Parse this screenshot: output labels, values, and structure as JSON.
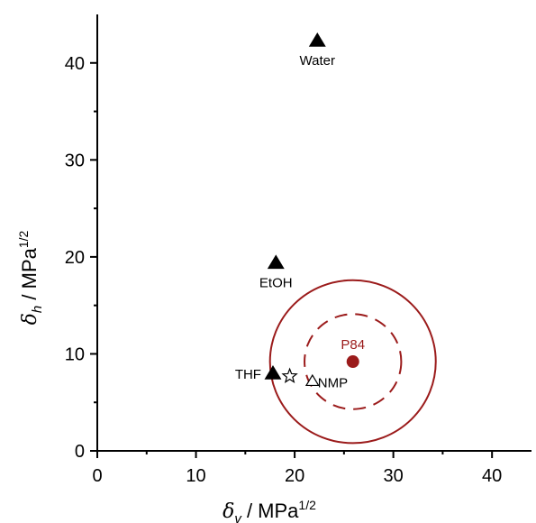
{
  "chart_data": {
    "type": "scatter",
    "xlim": [
      0,
      44
    ],
    "ylim": [
      0,
      45
    ],
    "x_ticks": [
      0,
      10,
      20,
      30,
      40
    ],
    "y_ticks": [
      0,
      10,
      20,
      30,
      40
    ],
    "x_tick_labels": [
      "0",
      "10",
      "20",
      "30",
      "40"
    ],
    "y_tick_labels": [
      "0",
      "10",
      "20",
      "30",
      "40"
    ],
    "xlabel": {
      "symbol": "δ",
      "sub": "v",
      "unit": " / MPa",
      "sup": "1/2"
    },
    "ylabel": {
      "symbol": "δ",
      "sub": "h",
      "unit": " / MPa",
      "sup": "1/2"
    },
    "grid": false,
    "points": [
      {
        "label": "Water",
        "x": 22.3,
        "y": 42.3,
        "marker": "filled-triangle",
        "label_pos": "below"
      },
      {
        "label": "EtOH",
        "x": 18.1,
        "y": 19.4,
        "marker": "filled-triangle",
        "label_pos": "below"
      },
      {
        "label": "THF",
        "x": 17.8,
        "y": 8.0,
        "marker": "filled-triangle",
        "label_pos": "left"
      },
      {
        "label": "",
        "x": 19.5,
        "y": 7.7,
        "marker": "open-star",
        "label_pos": "none"
      },
      {
        "label": "NMP",
        "x": 21.8,
        "y": 7.2,
        "marker": "open-triangle",
        "label_pos": "right"
      },
      {
        "label": "P84",
        "x": 25.9,
        "y": 9.2,
        "marker": "filled-circle",
        "label_pos": "above"
      }
    ],
    "circles": [
      {
        "center_x": 25.9,
        "center_y": 9.2,
        "radius": 8.4,
        "style": "solid"
      },
      {
        "center_x": 25.9,
        "center_y": 9.2,
        "radius": 4.9,
        "style": "dashed"
      }
    ]
  },
  "colors": {
    "axis": "#000000",
    "solvent": "#000000",
    "polymer": "#9b1b1b"
  }
}
